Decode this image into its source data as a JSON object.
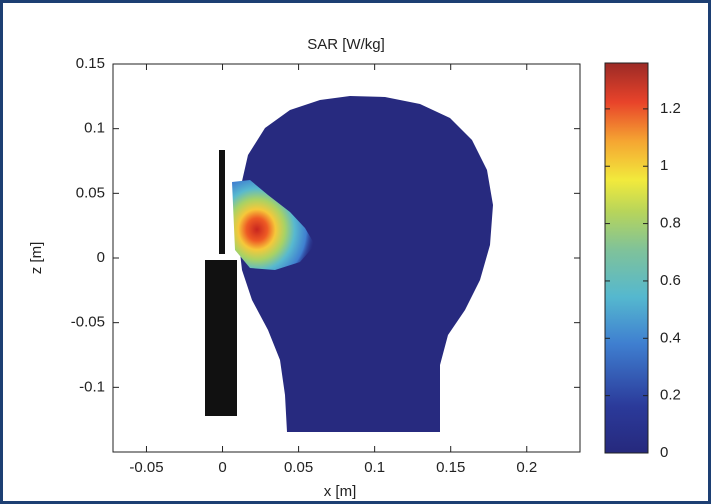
{
  "chart_data": {
    "type": "heatmap",
    "title": "SAR [W/kg]",
    "xlabel": "x [m]",
    "ylabel": "z [m]",
    "xlim": [
      -0.072,
      0.235
    ],
    "ylim": [
      -0.15,
      0.15
    ],
    "xticks": [
      -0.05,
      0,
      0.05,
      0.1,
      0.15,
      0.2
    ],
    "yticks": [
      -0.1,
      -0.05,
      0,
      0.05,
      0.1,
      0.15
    ],
    "colorbar": {
      "clim": [
        0,
        1.36
      ],
      "ticks": [
        0,
        0.2,
        0.4,
        0.6,
        0.8,
        1,
        1.2
      ]
    }
  }
}
